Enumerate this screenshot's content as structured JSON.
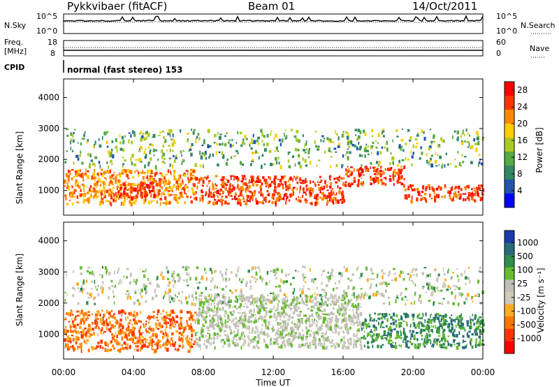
{
  "header": {
    "station": "Pykkvibaer (fitACF)",
    "beam": "Beam 01",
    "date": "14/Oct/2011"
  },
  "top_panels": {
    "nsky_label": "N.Sky",
    "nsky_ticks": [
      "10^5",
      "10^0"
    ],
    "nsky_right_ticks": [
      "10^5",
      "10^0"
    ],
    "nsearch_label": "N.Search",
    "freq_label": "Freq.",
    "freq_unit": "[MHz]",
    "freq_ticks": [
      "18",
      "8"
    ],
    "nave_ticks": [
      "60",
      "0"
    ],
    "nave_label": "Nave",
    "cpid_label": "CPID",
    "cpid_text": "normal (fast stereo) 153"
  },
  "x_axis": {
    "label": "Time UT",
    "ticks": [
      "00:00",
      "04:00",
      "08:00",
      "12:00",
      "16:00",
      "20:00",
      "00:00"
    ]
  },
  "colors": {
    "power": [
      "#0000ff",
      "#2255aa",
      "#338866",
      "#55aa44",
      "#aacc22",
      "#ffcc00",
      "#ff8800",
      "#ff3300",
      "#ff0000"
    ],
    "velocity": [
      "#1a3aa8",
      "#2a6a7a",
      "#2f8c4a",
      "#66bb33",
      "#c0c0b8",
      "#cfc9b8",
      "#ffaa22",
      "#ff7700",
      "#ff3300",
      "#ff0000"
    ]
  },
  "chart_data": [
    {
      "type": "heatmap",
      "title": "Power",
      "xlabel": "Time UT",
      "ylabel": "Slant Range [km]",
      "xlim": [
        "00:00",
        "24:00"
      ],
      "ylim": [
        200,
        4600
      ],
      "yticks": [
        1000,
        2000,
        3000,
        4000
      ],
      "colorbar": {
        "label": "Power [dB]",
        "ticks": [
          4,
          8,
          12,
          16,
          20,
          24,
          28
        ],
        "range": [
          0,
          30
        ]
      },
      "echo_regions": [
        {
          "start": "00:00",
          "end": "07:30",
          "range_km": [
            600,
            1700
          ],
          "dominant_db": 24
        },
        {
          "start": "03:00",
          "end": "05:30",
          "range_km": [
            800,
            1300
          ],
          "dominant_db": 28
        },
        {
          "start": "07:30",
          "end": "16:00",
          "range_km": [
            600,
            1500
          ],
          "dominant_db": 26
        },
        {
          "start": "16:00",
          "end": "19:30",
          "range_km": [
            1200,
            1800
          ],
          "dominant_db": 28
        },
        {
          "start": "19:30",
          "end": "24:00",
          "range_km": [
            700,
            1200
          ],
          "dominant_db": 26
        },
        {
          "start": "00:00",
          "end": "24:00",
          "range_km": [
            1800,
            3000
          ],
          "dominant_db": 12
        }
      ]
    },
    {
      "type": "heatmap",
      "title": "Velocity",
      "xlabel": "Time UT",
      "ylabel": "Slant Range [km]",
      "xlim": [
        "00:00",
        "24:00"
      ],
      "ylim": [
        200,
        4600
      ],
      "yticks": [
        1000,
        2000,
        3000,
        4000
      ],
      "colorbar": {
        "label": "Velocity [m s⁻¹]",
        "ticks": [
          1000,
          500,
          100,
          25,
          -25,
          -100,
          -500,
          -1000
        ]
      },
      "echo_regions": [
        {
          "start": "00:00",
          "end": "07:30",
          "range_km": [
            500,
            1800
          ],
          "dominant_velocity": -300
        },
        {
          "start": "07:30",
          "end": "17:00",
          "range_km": [
            600,
            2300
          ],
          "dominant_velocity": 0
        },
        {
          "start": "17:00",
          "end": "24:00",
          "range_km": [
            600,
            1700
          ],
          "dominant_velocity": 100
        },
        {
          "start": "00:00",
          "end": "24:00",
          "range_km": [
            2000,
            3200
          ],
          "dominant_velocity": 0
        }
      ]
    }
  ]
}
